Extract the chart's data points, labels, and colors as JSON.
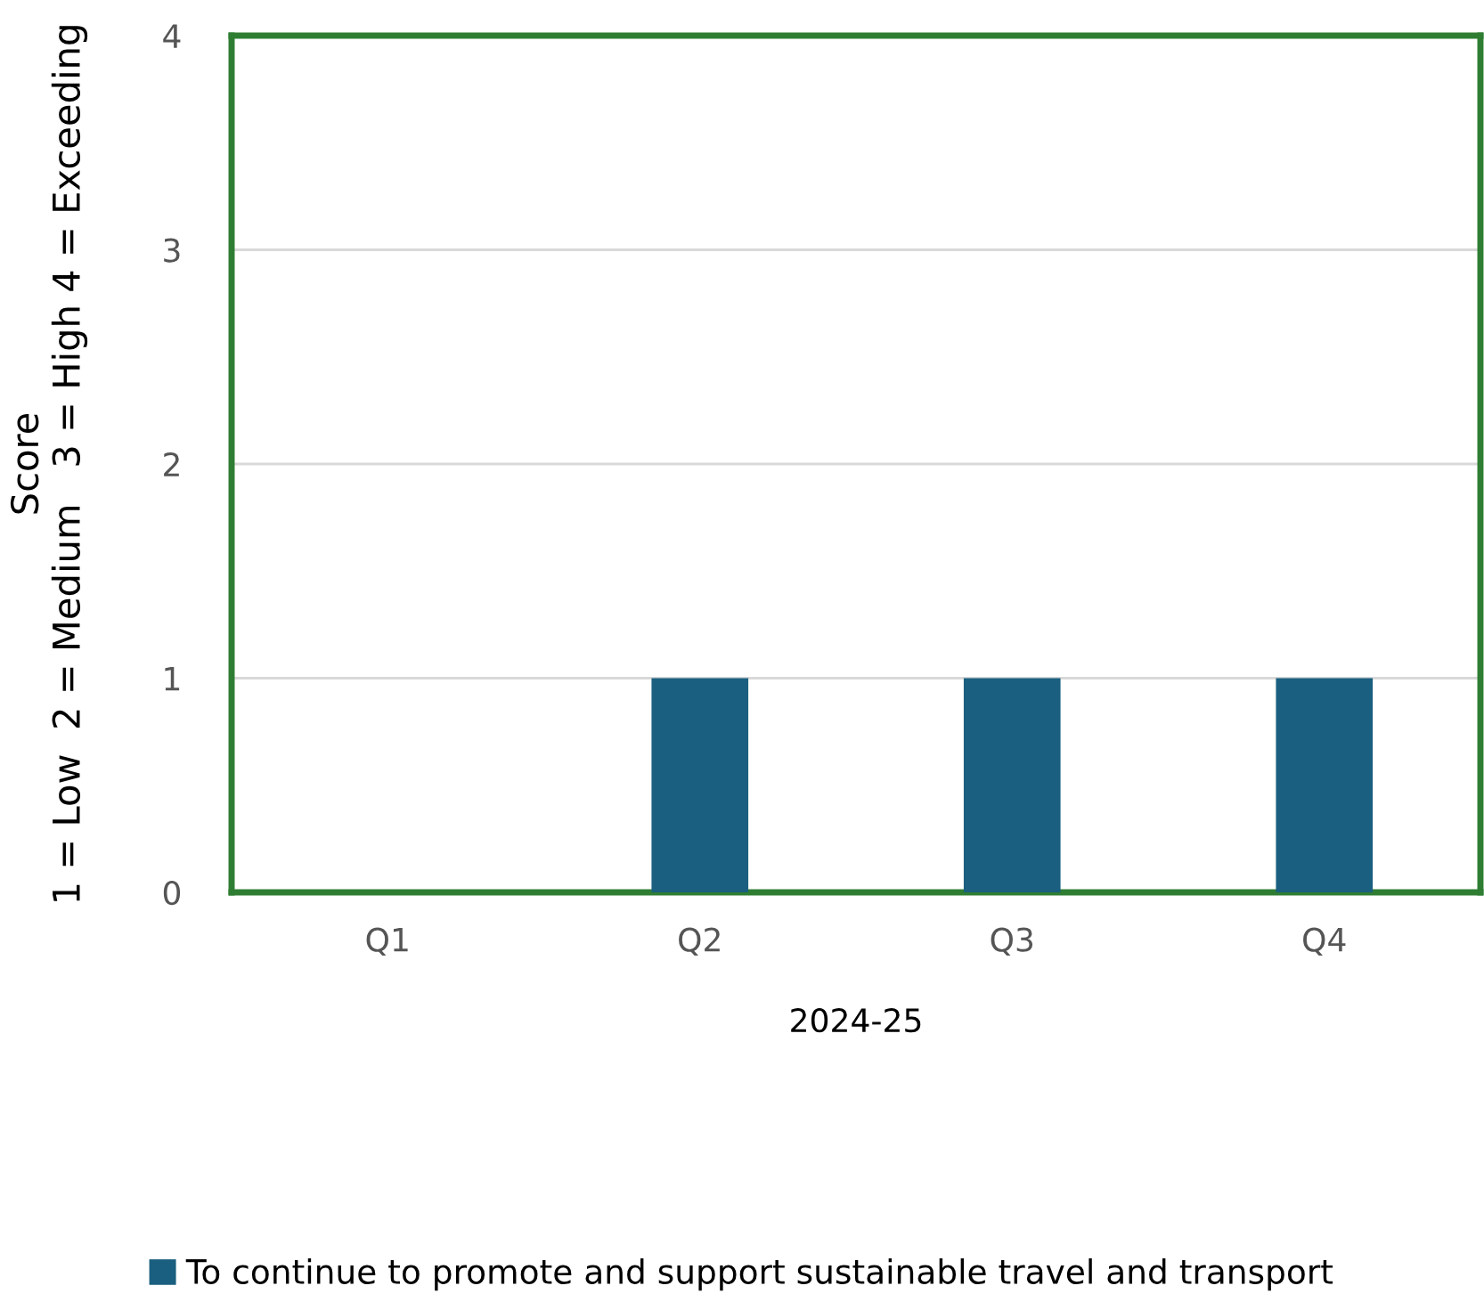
{
  "chart_data": {
    "type": "bar",
    "categories": [
      "Q1",
      "Q2",
      "Q3",
      "Q4"
    ],
    "series": [
      {
        "name": "To continue to promote and support sustainable travel and transport",
        "color": "#1a5f7f",
        "values": [
          0,
          1,
          1,
          1
        ]
      }
    ],
    "xlabel": "2024-25",
    "ylabel": "Score\n1 = Low  2 = Medium   3 = High 4 = Exceeding",
    "ylim": [
      0,
      4
    ],
    "yticks": [
      0,
      1,
      2,
      3,
      4
    ],
    "grid": "y",
    "legend": "bottom"
  }
}
